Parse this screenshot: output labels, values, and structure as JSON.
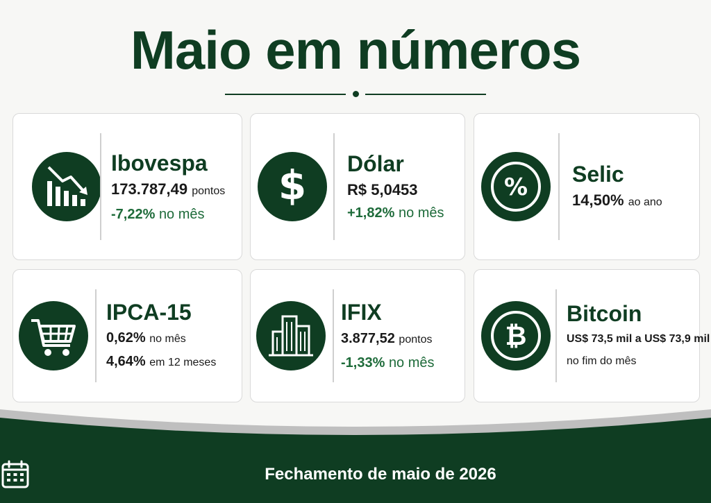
{
  "title": "Maio em números",
  "cards": [
    {
      "name": "Ibovespa",
      "value": "173.787,49",
      "value_unit": "pontos",
      "change": "-7,22%",
      "change_unit": "no mês",
      "icon": "chart-down-icon"
    },
    {
      "name": "Dólar",
      "value": "R$ 5,0453",
      "change": "+1,82%",
      "change_unit": "no mês",
      "icon": "dollar-icon"
    },
    {
      "name": "Selic",
      "value": "14,50%",
      "value_unit": "ao ano",
      "icon": "percent-icon"
    },
    {
      "name": "IPCA-15",
      "line1": "0,62%",
      "line1_unit": "no mês",
      "line2": "4,64%",
      "line2_unit": "em 12 meses",
      "icon": "shopping-cart-icon"
    },
    {
      "name": "IFIX",
      "value": "3.877,52",
      "value_unit": "pontos",
      "change": "-1,33%",
      "change_unit": "no mês",
      "icon": "buildings-icon"
    },
    {
      "name": "Bitcoin",
      "line1": "US$ 73,5 mil a US$ 73,9 mil",
      "line2": "no fim do mês",
      "icon": "bitcoin-icon"
    }
  ],
  "footer": {
    "text": "Fechamento de maio de 2026",
    "icon": "calendar-icon"
  },
  "colors": {
    "primary": "#0f3d22",
    "accent": "#1e6b3a",
    "background": "#f7f7f5"
  }
}
